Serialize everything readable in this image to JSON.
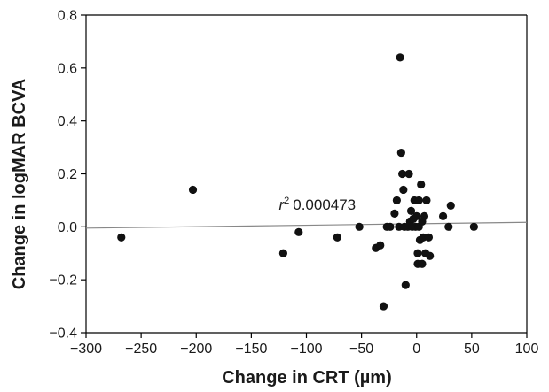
{
  "chart_data": {
    "type": "scatter",
    "title": "",
    "xlabel": "Change in CRT (µm)",
    "ylabel": "Change in logMAR BCVA",
    "xlim": [
      -300,
      100
    ],
    "ylim": [
      -0.4,
      0.8
    ],
    "xticks": [
      -300,
      -250,
      -200,
      -150,
      -100,
      -50,
      0,
      50,
      100
    ],
    "xtick_labels": [
      "−300",
      "−250",
      "−200",
      "−150",
      "−100",
      "−50",
      "0",
      "50",
      "100"
    ],
    "yticks": [
      -0.4,
      -0.2,
      0.0,
      0.2,
      0.4,
      0.6,
      0.8
    ],
    "ytick_labels": [
      "−0.4",
      "−0.2",
      "0.0",
      "0.2",
      "0.4",
      "0.6",
      "0.8"
    ],
    "grid": false,
    "legend": "none",
    "point_color": "#111111",
    "line_color": "#888888",
    "annotation": {
      "symbol": "r",
      "superscript": "2",
      "value": "0.000473",
      "x": -125,
      "y": 0.065
    },
    "regression_line": {
      "x": [
        -300,
        100
      ],
      "y": [
        -0.005,
        0.017
      ]
    },
    "points": [
      {
        "x": -268,
        "y": -0.04
      },
      {
        "x": -203,
        "y": 0.14
      },
      {
        "x": -121,
        "y": -0.1
      },
      {
        "x": -107,
        "y": -0.02
      },
      {
        "x": -72,
        "y": -0.04
      },
      {
        "x": -52,
        "y": 0.0
      },
      {
        "x": -37,
        "y": -0.08
      },
      {
        "x": -33,
        "y": -0.07
      },
      {
        "x": -30,
        "y": -0.3
      },
      {
        "x": -27,
        "y": 0.0
      },
      {
        "x": -24,
        "y": 0.0
      },
      {
        "x": -20,
        "y": 0.05
      },
      {
        "x": -18,
        "y": 0.1
      },
      {
        "x": -16,
        "y": 0.0
      },
      {
        "x": -15,
        "y": 0.64
      },
      {
        "x": -14,
        "y": 0.28
      },
      {
        "x": -13,
        "y": 0.2
      },
      {
        "x": -12,
        "y": 0.14
      },
      {
        "x": -11,
        "y": 0.0
      },
      {
        "x": -10,
        "y": -0.22
      },
      {
        "x": -8,
        "y": 0.0
      },
      {
        "x": -7,
        "y": 0.2
      },
      {
        "x": -6,
        "y": 0.02
      },
      {
        "x": -5,
        "y": 0.06
      },
      {
        "x": -4,
        "y": 0.0
      },
      {
        "x": -3,
        "y": 0.03
      },
      {
        "x": -2,
        "y": 0.1
      },
      {
        "x": -1,
        "y": 0.0
      },
      {
        "x": 0,
        "y": 0.04
      },
      {
        "x": 1,
        "y": -0.1
      },
      {
        "x": 1,
        "y": -0.14
      },
      {
        "x": 2,
        "y": 0.0
      },
      {
        "x": 2,
        "y": 0.1
      },
      {
        "x": 3,
        "y": -0.05
      },
      {
        "x": 4,
        "y": 0.16
      },
      {
        "x": 5,
        "y": 0.02
      },
      {
        "x": 5,
        "y": -0.14
      },
      {
        "x": 6,
        "y": -0.04
      },
      {
        "x": 7,
        "y": 0.04
      },
      {
        "x": 8,
        "y": -0.1
      },
      {
        "x": 9,
        "y": 0.1
      },
      {
        "x": 11,
        "y": -0.04
      },
      {
        "x": 12,
        "y": -0.11
      },
      {
        "x": 24,
        "y": 0.04
      },
      {
        "x": 29,
        "y": 0.0
      },
      {
        "x": 31,
        "y": 0.08
      },
      {
        "x": 52,
        "y": 0.0
      }
    ]
  }
}
